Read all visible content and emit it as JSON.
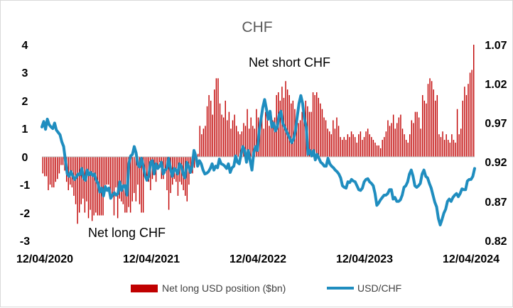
{
  "chart_data": {
    "type": "bar+line",
    "title": "CHF",
    "x_tick_labels": [
      "12/04/2020",
      "12/04/2021",
      "12/04/2022",
      "12/04/2023",
      "12/04/2024"
    ],
    "y_left": {
      "range": [
        -3,
        4
      ],
      "ticks": [
        "4",
        "3",
        "2",
        "1",
        "0",
        "-1",
        "-2",
        "-3"
      ]
    },
    "y_right": {
      "range": [
        0.82,
        1.07
      ],
      "ticks": [
        "1.07",
        "1.02",
        "0.97",
        "0.92",
        "0.87",
        "0.82"
      ]
    },
    "annotations": [
      "Net short CHF",
      "Net long CHF"
    ],
    "colors": {
      "bars": "#c00000",
      "line": "#1f8dbf"
    },
    "legend_position": "bottom",
    "series": [
      {
        "name": "Net long USD position ($bn)",
        "kind": "bar",
        "axis": "left",
        "x_start": "12/04/2020",
        "interval": "weekly",
        "values": [
          -0.6,
          -0.7,
          -0.7,
          -1.2,
          -1.0,
          -1.1,
          -1.1,
          -0.9,
          -0.8,
          -0.6,
          -0.3,
          -0.3,
          -0.5,
          -0.9,
          -1.2,
          -1.0,
          -1.1,
          -1.4,
          -1.7,
          -2.4,
          -2.0,
          -1.7,
          -1.5,
          -2.0,
          -1.6,
          -2.2,
          -1.9,
          -2.3,
          -2.1,
          -2.0,
          -2.1,
          -2.1,
          -2.1,
          -2.1,
          -1.3,
          -1.0,
          -1.0,
          -1.5,
          -1.4,
          -2.1,
          -1.1,
          -2.2,
          -1.5,
          -1.6,
          -1.7,
          -2.0,
          -2.0,
          -1.8,
          -2.0,
          -1.6,
          -1.3,
          -1.6,
          -1.0,
          -1.7,
          -2.0,
          -2.0,
          -0.5,
          -0.7,
          -0.9,
          -1.2,
          -0.8,
          -0.6,
          -0.9,
          -0.4,
          -0.2,
          -0.8,
          -0.8,
          -0.6,
          -1.2,
          -1.9,
          -1.3,
          -1.0,
          -0.8,
          -0.9,
          -1.4,
          -0.9,
          -1.0,
          -1.2,
          -1.4,
          -1.6,
          -1.0,
          -0.5,
          -0.6,
          -0.4,
          -0.1,
          0.1,
          1.1,
          0.8,
          1.0,
          1.1,
          1.8,
          2.2,
          2.0,
          1.5,
          2.4,
          2.8,
          2.8,
          1.9,
          1.5,
          1.4,
          2.0,
          1.3,
          1.6,
          1.0,
          1.3,
          1.5,
          1.1,
          0.9,
          0.8,
          0.9,
          1.2,
          1.1,
          1.7,
          1.0,
          1.4,
          1.1,
          1.0,
          1.7,
          1.4,
          1.2,
          1.5,
          1.0,
          1.6,
          1.3,
          1.1,
          1.6,
          1.3,
          1.4,
          2.2,
          2.3,
          2.0,
          2.5,
          2.1,
          2.7,
          2.4,
          2.2,
          1.9,
          2.0,
          1.7,
          1.4,
          1.2,
          1.3,
          1.6,
          1.7,
          2.0,
          1.8,
          1.6,
          1.6,
          2.3,
          2.2,
          2.3,
          2.1,
          1.9,
          1.7,
          1.4,
          1.3,
          1.0,
          0.9,
          0.8,
          1.3,
          1.0,
          1.4,
          1.1,
          0.7,
          0.6,
          0.7,
          0.6,
          0.8,
          0.7,
          0.9,
          0.8,
          0.7,
          0.5,
          0.8,
          0.9,
          0.6,
          0.7,
          0.9,
          1.0,
          0.8,
          0.7,
          0.6,
          0.5,
          0.4,
          0.4,
          0.3,
          0.6,
          0.7,
          0.9,
          1.3,
          1.1,
          1.2,
          1.5,
          1.0,
          1.2,
          1.4,
          1.5,
          1.0,
          0.8,
          0.6,
          0.5,
          0.8,
          1.3,
          1.2,
          1.6,
          1.6,
          1.4,
          1.0,
          2.2,
          2.0,
          1.9,
          2.6,
          2.8,
          2.7,
          2.4,
          2.0,
          2.2,
          0.8,
          0.7,
          0.9,
          0.6,
          0.8,
          0.6,
          0.5,
          0.8,
          0.6,
          0.5,
          1.7,
          0.8,
          1.0,
          2.0,
          2.5,
          2.2,
          2.6,
          3.0,
          3.1,
          4.0
        ]
      },
      {
        "name": "USD/CHF",
        "kind": "line",
        "axis": "right",
        "x_start": "12/04/2020",
        "interval": "weekly",
        "values": [
          0.965,
          0.972,
          0.962,
          0.975,
          0.968,
          0.965,
          0.963,
          0.97,
          0.961,
          0.958,
          0.955,
          0.946,
          0.94,
          0.922,
          0.905,
          0.902,
          0.908,
          0.903,
          0.898,
          0.901,
          0.905,
          0.904,
          0.912,
          0.9,
          0.897,
          0.91,
          0.904,
          0.907,
          0.903,
          0.905,
          0.897,
          0.893,
          0.882,
          0.887,
          0.877,
          0.889,
          0.884,
          0.887,
          0.874,
          0.878,
          0.881,
          0.878,
          0.88,
          0.895,
          0.884,
          0.89,
          0.89,
          0.878,
          0.918,
          0.928,
          0.93,
          0.94,
          0.932,
          0.917,
          0.914,
          0.925,
          0.915,
          0.903,
          0.897,
          0.902,
          0.92,
          0.922,
          0.905,
          0.918,
          0.912,
          0.915,
          0.92,
          0.905,
          0.91,
          0.912,
          0.925,
          0.912,
          0.902,
          0.912,
          0.91,
          0.905,
          0.918,
          0.915,
          0.905,
          0.9,
          0.92,
          0.915,
          0.907,
          0.915,
          0.935,
          0.928,
          0.915,
          0.922,
          0.918,
          0.91,
          0.905,
          0.906,
          0.908,
          0.912,
          0.918,
          0.91,
          0.915,
          0.913,
          0.924,
          0.918,
          0.917,
          0.915,
          0.912,
          0.918,
          0.907,
          0.913,
          0.915,
          0.928,
          0.92,
          0.918,
          0.93,
          0.94,
          0.935,
          0.92,
          0.935,
          0.922,
          0.91,
          0.932,
          0.94,
          0.935,
          0.96,
          0.975,
          0.99,
          1.0,
          0.988,
          0.975,
          0.985,
          0.965,
          0.97,
          0.96,
          0.965,
          0.98,
          0.985,
          0.97,
          0.965,
          0.96,
          0.955,
          0.95,
          0.945,
          0.95,
          0.96,
          0.978,
          0.995,
          1.005,
          0.995,
          0.975,
          0.965,
          0.93,
          0.935,
          0.928,
          0.935,
          0.923,
          0.93,
          0.925,
          0.92,
          0.918,
          0.915,
          0.915,
          0.925,
          0.918,
          0.915,
          0.913,
          0.91,
          0.908,
          0.905,
          0.9,
          0.89,
          0.888,
          0.887,
          0.895,
          0.894,
          0.898,
          0.896,
          0.895,
          0.89,
          0.885,
          0.884,
          0.887,
          0.895,
          0.898,
          0.899,
          0.895,
          0.893,
          0.89,
          0.88,
          0.865,
          0.868,
          0.872,
          0.875,
          0.878,
          0.878,
          0.88,
          0.885,
          0.885,
          0.873,
          0.875,
          0.87,
          0.87,
          0.872,
          0.878,
          0.888,
          0.89,
          0.895,
          0.905,
          0.91,
          0.902,
          0.89,
          0.888,
          0.89,
          0.893,
          0.905,
          0.91,
          0.902,
          0.9,
          0.893,
          0.887,
          0.878,
          0.869,
          0.863,
          0.848,
          0.84,
          0.847,
          0.855,
          0.86,
          0.87,
          0.873,
          0.87,
          0.875,
          0.878,
          0.88,
          0.876,
          0.88,
          0.886,
          0.885,
          0.885,
          0.896,
          0.898,
          0.898,
          0.902,
          0.912
        ]
      }
    ]
  }
}
